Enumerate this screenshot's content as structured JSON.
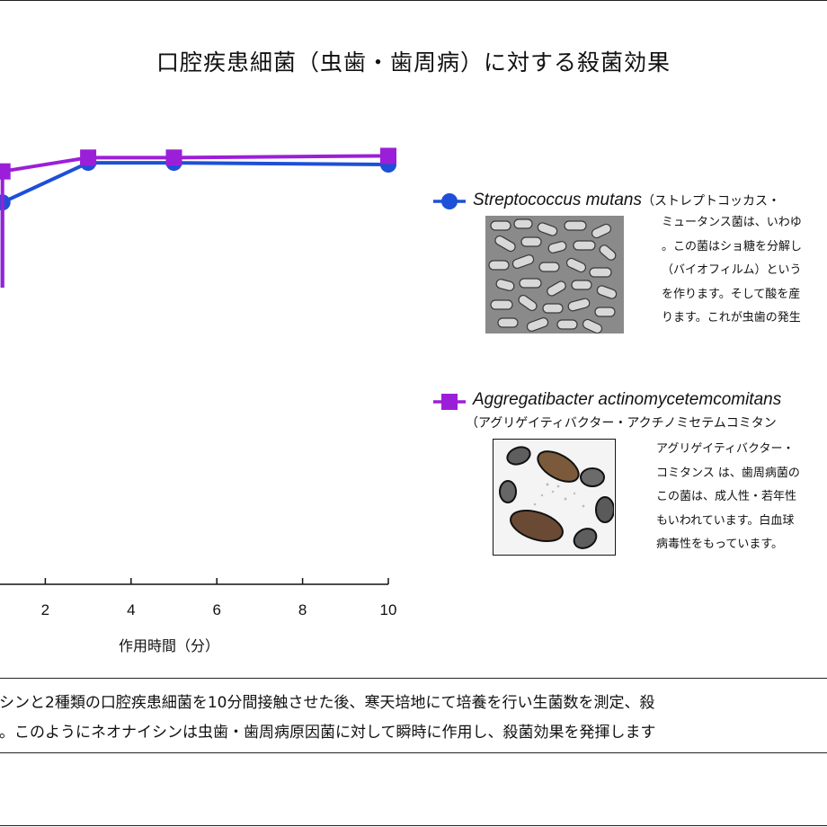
{
  "title": "口腔疾患細菌（虫歯・歯周病）に対する殺菌効果",
  "chart_data": {
    "type": "line",
    "xlabel": "作用時間（分）",
    "x_ticks": [
      2,
      4,
      6,
      8,
      10
    ],
    "xlim": [
      0,
      10
    ],
    "grid": false,
    "series": [
      {
        "name": "Streptococcus mutans",
        "color": "#1e4fd8",
        "marker": "circle",
        "x": [
          1,
          3,
          5,
          10
        ],
        "y": [
          97.3,
          99.6,
          99.6,
          99.5
        ]
      },
      {
        "name": "Aggregatibacter actinomycetemcomitans",
        "color": "#9b1fd8",
        "marker": "square",
        "x": [
          1,
          3,
          5,
          10
        ],
        "y": [
          99.1,
          99.9,
          99.9,
          100.0
        ]
      }
    ]
  },
  "legend": {
    "mutans": {
      "name": "Streptococcus mutans",
      "kana": "（ストレプトコッカス・",
      "description": [
        "ミュータンス菌は、いわゆ",
        "。この菌はショ糖を分解し",
        "（バイオフィルム）という",
        "を作ります。そして酸を産",
        "ります。これが虫歯の発生"
      ]
    },
    "aa": {
      "name": "Aggregatibacter actinomycetemcomitans",
      "kana": "（アグリゲイティバクター・アクチノミセテムコミタン",
      "description": [
        "アグリゲイティバクター・",
        "コミタンス は、歯周病菌の",
        "この菌は、成人性・若年性",
        "もいわれています。白血球",
        "病毒性をもっています。"
      ]
    }
  },
  "note": {
    "line1": "シンと2種類の口腔疾患細菌を10分間接触させた後、寒天培地にて培養を行い生菌数を測定、殺",
    "line2": "。このようにネオナイシンは虫歯・歯周病原因菌に対して瞬時に作用し、殺菌効果を発揮します"
  }
}
